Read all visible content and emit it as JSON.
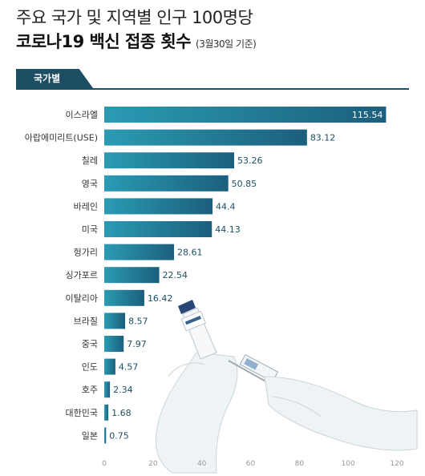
{
  "header": {
    "title_line1": "주요 국가 및 지역별 인구 100명당",
    "title_line2": "코로나19 백신 접종 횟수",
    "title_note": "(3월30일 기준)",
    "tab_label": "국가별"
  },
  "colors": {
    "tab_bg": "#1d4e63",
    "bar_light": "#2a9bb3",
    "bar_dark": "#1b5f7d",
    "label_inside": "#ffffff",
    "label_outside": "#1d4e63"
  },
  "chart_data": {
    "type": "bar",
    "orientation": "horizontal",
    "categories": [
      "이스라엘",
      "아랍에미리트(USE)",
      "칠레",
      "영국",
      "바레인",
      "미국",
      "헝가리",
      "싱가포르",
      "이탈리아",
      "브라질",
      "중국",
      "인도",
      "호주",
      "대한민국",
      "일본"
    ],
    "values": [
      115.54,
      83.12,
      53.26,
      50.85,
      44.4,
      44.13,
      28.61,
      22.54,
      16.42,
      8.57,
      7.97,
      4.57,
      2.34,
      1.68,
      0.75
    ],
    "value_labels": [
      "115.54",
      "83.12",
      "53.26",
      "50.85",
      "44.4",
      "44.13",
      "28.61",
      "22.54",
      "16.42",
      "8.57",
      "7.97",
      "4.57",
      "2.34",
      "1.68",
      "0.75"
    ],
    "xlim": [
      0,
      120
    ],
    "xticks": [
      0,
      20,
      40,
      60,
      80,
      100,
      120
    ],
    "grid": false,
    "title": "주요 국가 및 지역별 인구 100명당 코로나19 백신 접종 횟수"
  }
}
